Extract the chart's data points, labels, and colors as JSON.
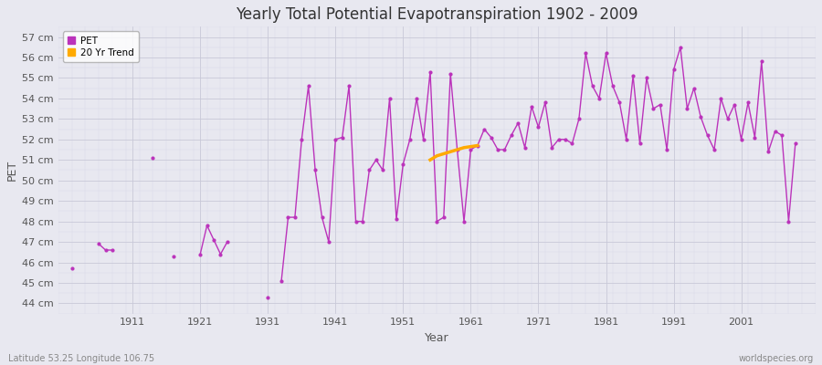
{
  "title": "Yearly Total Potential Evapotranspiration 1902 - 2009",
  "xlabel": "Year",
  "ylabel": "PET",
  "bottom_left_label": "Latitude 53.25 Longitude 106.75",
  "bottom_right_label": "worldspecies.org",
  "ylim": [
    43.5,
    57.5
  ],
  "ytick_labels": [
    "44 cm",
    "45 cm",
    "46 cm",
    "47 cm",
    "48 cm",
    "49 cm",
    "50 cm",
    "51 cm",
    "52 cm",
    "53 cm",
    "54 cm",
    "55 cm",
    "56 cm",
    "57 cm"
  ],
  "ytick_values": [
    44,
    45,
    46,
    47,
    48,
    49,
    50,
    51,
    52,
    53,
    54,
    55,
    56,
    57
  ],
  "xtick_values": [
    1911,
    1921,
    1931,
    1941,
    1951,
    1961,
    1971,
    1981,
    1991,
    2001
  ],
  "pet_color": "#bb33bb",
  "trend_color": "#ffaa00",
  "bg_color": "#e8e8f0",
  "fig_bg_color": "#e8e8f0",
  "pet_years": [
    1902,
    1906,
    1907,
    1908,
    1914,
    1917,
    1921,
    1922,
    1923,
    1924,
    1925,
    1931,
    1933,
    1934,
    1935,
    1936,
    1937,
    1938,
    1939,
    1940,
    1941,
    1942,
    1943,
    1944,
    1945,
    1946,
    1947,
    1948,
    1949,
    1950,
    1951,
    1952,
    1953,
    1954,
    1955,
    1956,
    1957,
    1958,
    1959,
    1960,
    1961,
    1962,
    1963,
    1964,
    1965,
    1966,
    1967,
    1968,
    1969,
    1970,
    1971,
    1972,
    1973,
    1974,
    1975,
    1976,
    1977,
    1978,
    1979,
    1980,
    1981,
    1982,
    1983,
    1984,
    1985,
    1986,
    1987,
    1988,
    1989,
    1990,
    1991,
    1992,
    1993,
    1994,
    1995,
    1996,
    1997,
    1998,
    1999,
    2000,
    2001,
    2002,
    2003,
    2004,
    2005,
    2006,
    2007,
    2008,
    2009
  ],
  "pet_values": [
    45.7,
    46.9,
    46.6,
    46.6,
    51.1,
    46.3,
    46.4,
    47.8,
    47.1,
    46.4,
    47.0,
    44.3,
    45.1,
    48.2,
    48.2,
    52.0,
    54.6,
    50.5,
    48.2,
    47.0,
    52.0,
    52.1,
    54.6,
    48.0,
    48.0,
    50.5,
    51.0,
    50.5,
    54.0,
    48.1,
    50.8,
    52.0,
    54.0,
    52.0,
    55.3,
    48.0,
    48.2,
    55.2,
    51.5,
    48.0,
    51.5,
    51.7,
    52.5,
    52.1,
    51.5,
    51.5,
    52.2,
    52.8,
    51.6,
    53.6,
    52.6,
    53.8,
    51.6,
    52.0,
    52.0,
    51.8,
    53.0,
    56.2,
    54.6,
    54.0,
    56.2,
    54.6,
    53.8,
    52.0,
    55.1,
    51.8,
    55.0,
    53.5,
    53.7,
    51.5,
    55.4,
    56.5,
    53.5,
    54.5,
    53.1,
    52.2,
    51.5,
    54.0,
    53.0,
    53.7,
    52.0,
    53.8,
    52.1,
    55.8,
    51.4,
    52.4,
    52.2,
    48.0,
    51.8
  ],
  "trend_years": [
    1955,
    1956,
    1957,
    1958,
    1959,
    1960,
    1961,
    1962
  ],
  "trend_values": [
    51.0,
    51.2,
    51.3,
    51.4,
    51.5,
    51.6,
    51.65,
    51.7
  ]
}
